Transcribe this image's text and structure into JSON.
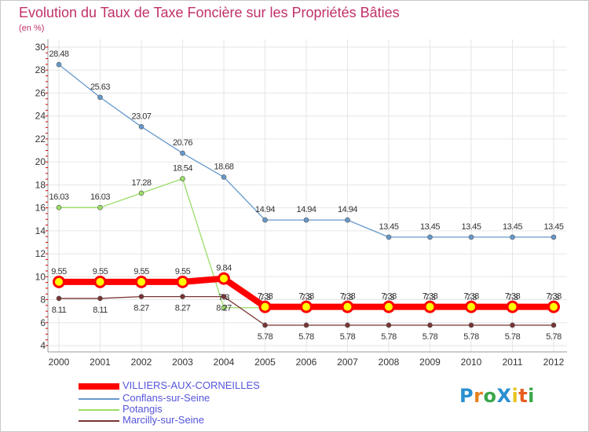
{
  "title": "Evolution du Taux de Taxe Foncière sur les Propriétés Bâties",
  "subtitle": "(en %)",
  "logo": {
    "letters": [
      {
        "ch": "P",
        "color": "#2a8fd0"
      },
      {
        "ch": "r",
        "color": "#e8821e"
      },
      {
        "ch": "o",
        "color": "#3aa64a"
      },
      {
        "ch": "X",
        "color": "#2a8fd0"
      },
      {
        "ch": "i",
        "color": "#e8c41e"
      },
      {
        "ch": "t",
        "color": "#e85c1e"
      },
      {
        "ch": "i",
        "color": "#3aa64a"
      }
    ]
  },
  "chart_data": {
    "type": "line",
    "title": "Evolution du Taux de Taxe Foncière sur les Propriétés Bâties",
    "subtitle": "(en %)",
    "xlabel": "",
    "ylabel": "(en %)",
    "categories": [
      "2000",
      "2001",
      "2002",
      "2003",
      "2004",
      "2005",
      "2006",
      "2007",
      "2008",
      "2009",
      "2010",
      "2011",
      "2012"
    ],
    "ylim": [
      4,
      30
    ],
    "yticks": [
      4,
      6,
      8,
      10,
      12,
      14,
      16,
      18,
      20,
      22,
      24,
      26,
      28,
      30
    ],
    "legend_position": "bottom-left",
    "series": [
      {
        "name": "VILLIERS-AUX-CORNEILLES",
        "color": "#ff0000",
        "weight": "thick",
        "values": [
          9.55,
          9.55,
          9.55,
          9.55,
          9.84,
          7.38,
          7.38,
          7.38,
          7.38,
          7.38,
          7.38,
          7.38,
          7.38
        ],
        "labels": [
          "9.55",
          "9.55",
          "9.55",
          "9.55",
          "9.84",
          "7.38",
          "7.38",
          "7.38",
          "7.38",
          "7.38",
          "7.38",
          "7.38",
          "7.38"
        ]
      },
      {
        "name": "Conflans-sur-Seine",
        "color": "#6699cc",
        "weight": "thin",
        "values": [
          28.48,
          25.63,
          23.07,
          20.76,
          18.68,
          14.94,
          14.94,
          14.94,
          13.45,
          13.45,
          13.45,
          13.45,
          13.45
        ],
        "labels": [
          "28.48",
          "25.63",
          "23.07",
          "20.76",
          "18.68",
          "14.94",
          "14.94",
          "14.94",
          "13.45",
          "13.45",
          "13.45",
          "13.45",
          "13.45"
        ]
      },
      {
        "name": "Potangis",
        "color": "#99dd66",
        "weight": "thin",
        "values": [
          16.03,
          16.03,
          17.28,
          18.54,
          7.3,
          7.3,
          7.3,
          7.3,
          7.3,
          7.3,
          7.3,
          7.3,
          7.3
        ],
        "labels": [
          "16.03",
          "16.03",
          "17.28",
          "18.54",
          "7.3",
          "7.3",
          "7.3",
          "7.3",
          "7.3",
          "7.3",
          "7.3",
          "7.3",
          "7.3"
        ]
      },
      {
        "name": "Marcilly-sur-Seine",
        "color": "#7a3333",
        "weight": "thin",
        "values": [
          8.11,
          8.11,
          8.27,
          8.27,
          8.27,
          5.78,
          5.78,
          5.78,
          5.78,
          5.78,
          5.78,
          5.78,
          5.78
        ],
        "labels": [
          "8.11",
          "8.11",
          "8.27",
          "8.27",
          "8.27",
          "5.78",
          "5.78",
          "5.78",
          "5.78",
          "5.78",
          "5.78",
          "5.78",
          "5.78"
        ]
      }
    ]
  }
}
